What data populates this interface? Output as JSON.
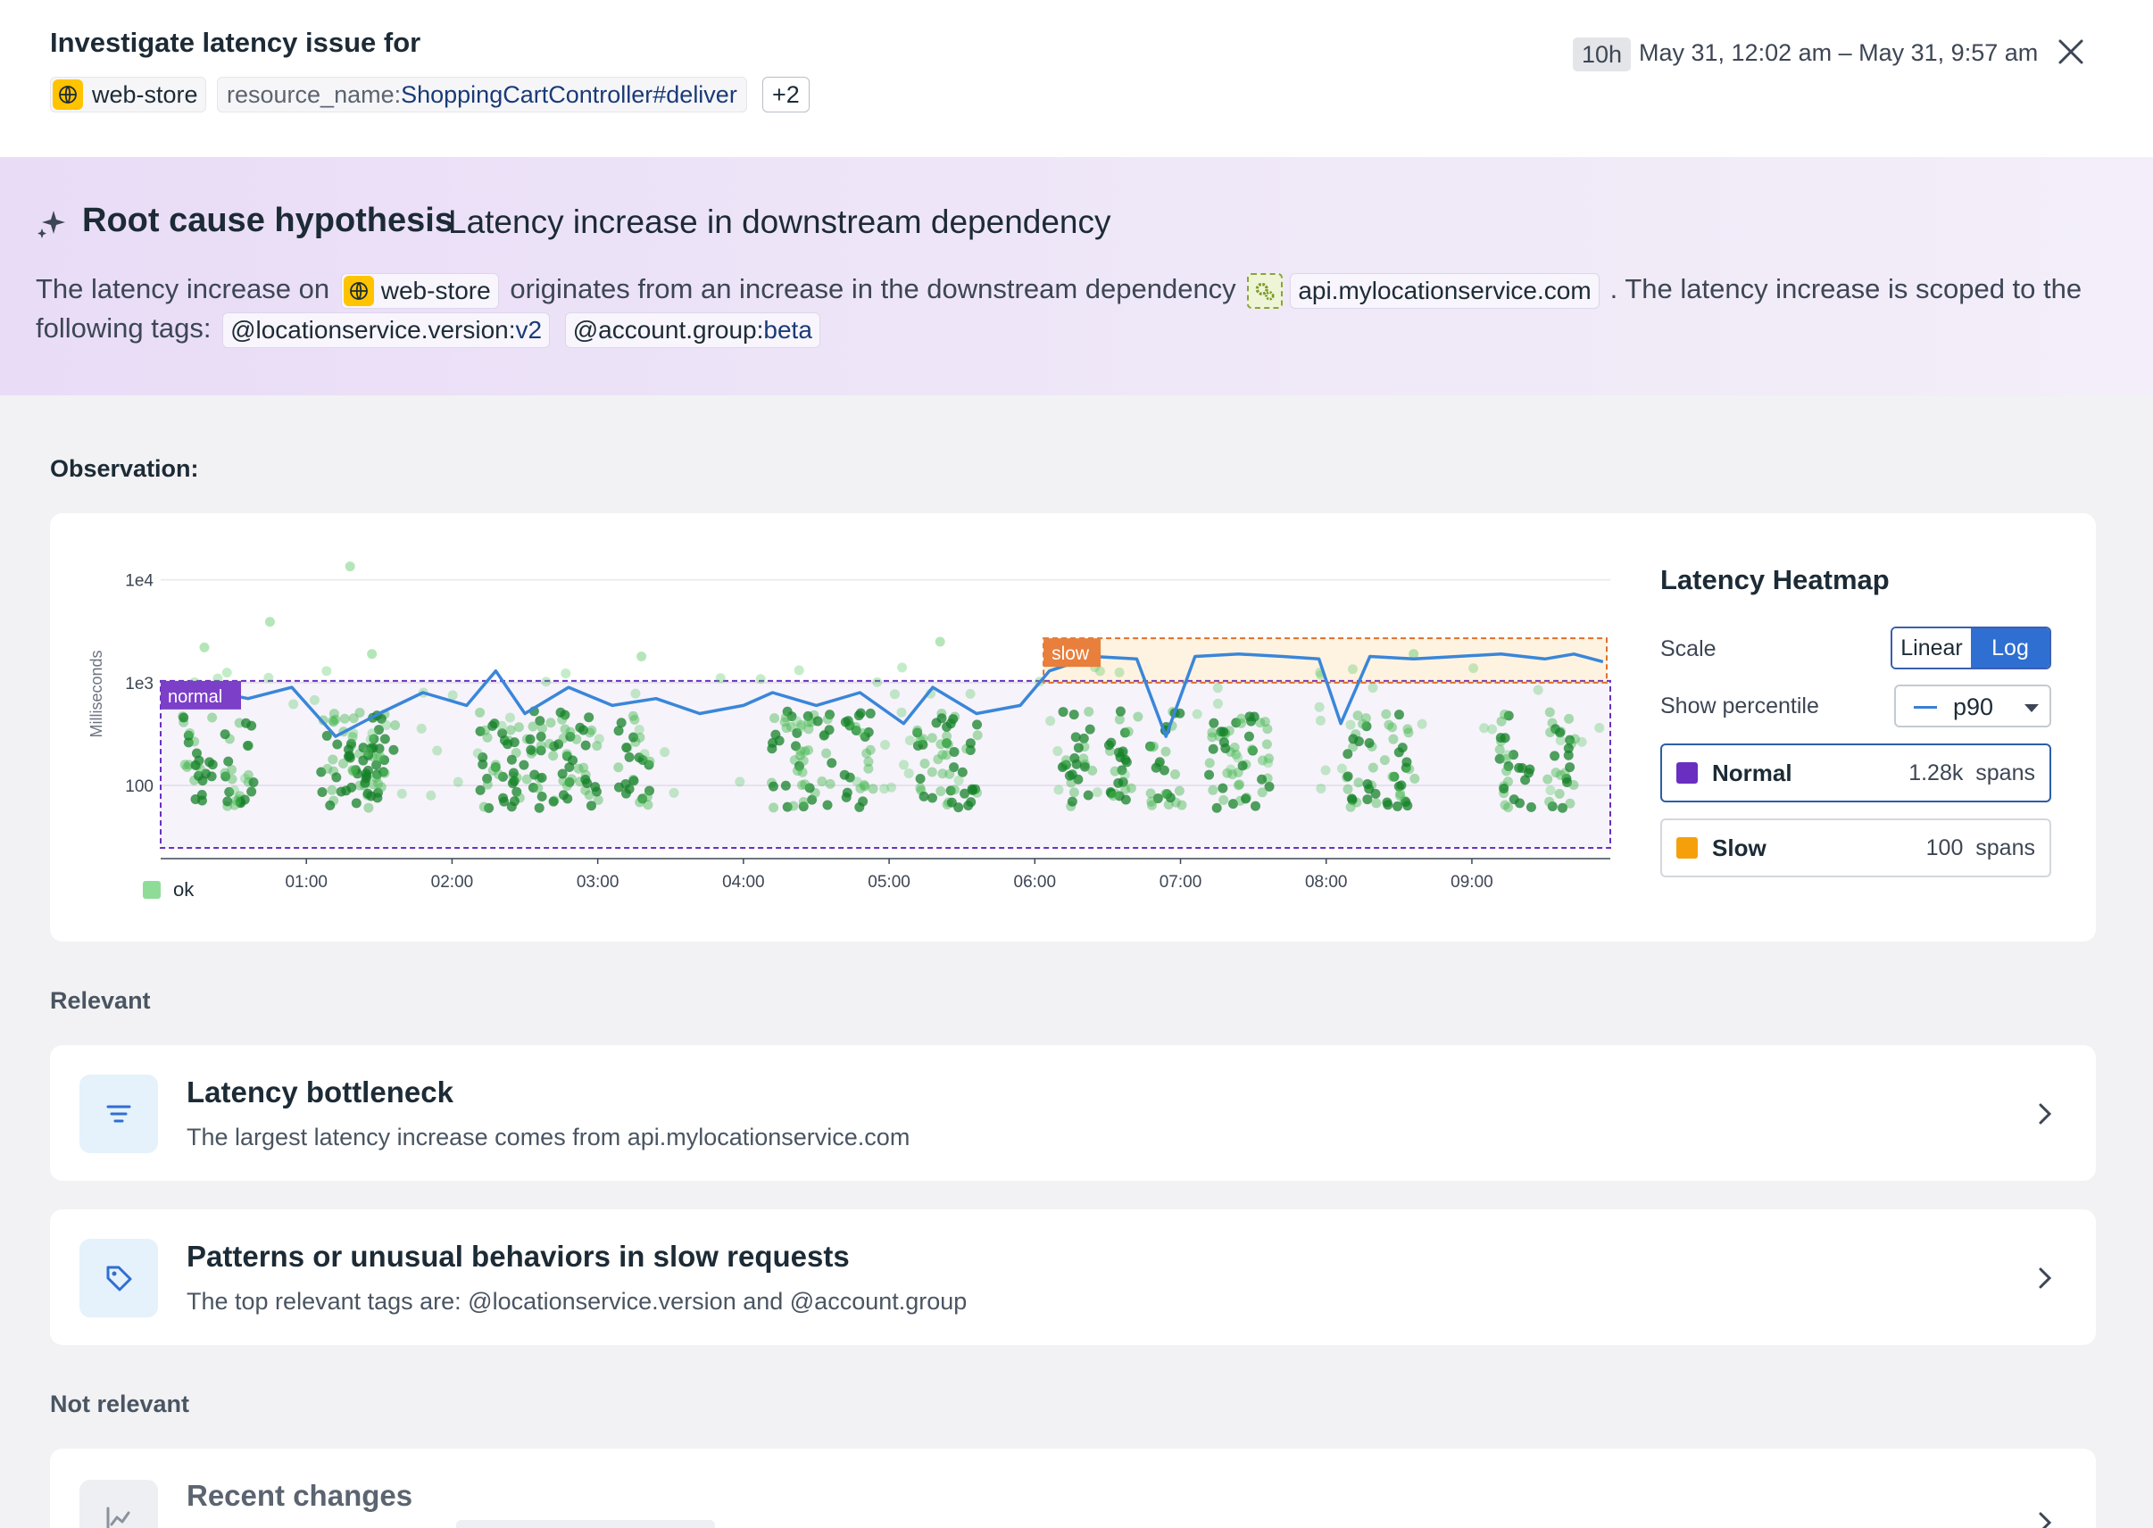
{
  "header": {
    "title": "Investigate latency issue for",
    "service_chip": "web-store",
    "resource_key": "resource_name:",
    "resource_value": "ShoppingCartController#deliver",
    "more_chip": "+2",
    "range_badge": "10h",
    "range_text": "May 31, 12:02 am – May 31, 9:57 am"
  },
  "hypothesis": {
    "title": "Root cause hypothesis",
    "subtitle": "Latency increase in downstream dependency",
    "text_1": "The latency increase on",
    "service": "web-store",
    "text_2": "originates from an increase in the downstream dependency",
    "dependency": "api.mylocationservice.com",
    "text_3": ". The latency increase is scoped to the following tags:",
    "tag1_key": "@locationservice.version:",
    "tag1_val": "v2",
    "tag2_key": "@account.group:",
    "tag2_val": "beta"
  },
  "observation": {
    "label": "Observation:",
    "heatmap_title": "Latency Heatmap",
    "scale_label": "Scale",
    "scale_options": [
      "Linear",
      "Log"
    ],
    "scale_selected": "Log",
    "percentile_label": "Show percentile",
    "percentile_value": "p90",
    "normal_name": "Normal",
    "normal_count": "1.28k",
    "normal_unit": "spans",
    "slow_name": "Slow",
    "slow_count": "100",
    "slow_unit": "spans",
    "normal_color": "#6a2fc0",
    "slow_color": "#f5a00a"
  },
  "chart_data": {
    "type": "scatter",
    "ylabel": "Milliseconds",
    "yscale": "log",
    "ytick_labels": [
      "100",
      "1e3",
      "1e4"
    ],
    "yticks": [
      100,
      1000,
      10000
    ],
    "xtick_labels": [
      "01:00",
      "02:00",
      "03:00",
      "04:00",
      "05:00",
      "06:00",
      "07:00",
      "08:00",
      "09:00"
    ],
    "xrange_hours": [
      0.03,
      9.95
    ],
    "legend": [
      "ok"
    ],
    "region_labels": {
      "normal": "normal",
      "slow": "slow"
    },
    "p90_series": [
      [
        0.05,
        600
      ],
      [
        0.3,
        850
      ],
      [
        0.6,
        700
      ],
      [
        0.9,
        900
      ],
      [
        1.2,
        300
      ],
      [
        1.5,
        500
      ],
      [
        1.8,
        800
      ],
      [
        2.1,
        600
      ],
      [
        2.3,
        1300
      ],
      [
        2.5,
        500
      ],
      [
        2.8,
        900
      ],
      [
        3.1,
        600
      ],
      [
        3.4,
        700
      ],
      [
        3.7,
        500
      ],
      [
        4.0,
        600
      ],
      [
        4.2,
        800
      ],
      [
        4.5,
        600
      ],
      [
        4.8,
        800
      ],
      [
        5.1,
        400
      ],
      [
        5.3,
        900
      ],
      [
        5.6,
        500
      ],
      [
        5.9,
        600
      ],
      [
        6.1,
        1300
      ],
      [
        6.4,
        1800
      ],
      [
        6.7,
        1700
      ],
      [
        6.9,
        300
      ],
      [
        7.1,
        1800
      ],
      [
        7.4,
        1900
      ],
      [
        7.7,
        1800
      ],
      [
        7.95,
        1700
      ],
      [
        8.1,
        400
      ],
      [
        8.3,
        1800
      ],
      [
        8.6,
        1700
      ],
      [
        8.9,
        1800
      ],
      [
        9.2,
        1900
      ],
      [
        9.5,
        1700
      ],
      [
        9.7,
        1900
      ],
      [
        9.9,
        1600
      ]
    ]
  },
  "sections": {
    "relevant": "Relevant",
    "not_relevant": "Not relevant"
  },
  "rows": [
    {
      "title": "Latency bottleneck",
      "desc": "The largest latency increase comes from api.mylocationservice.com",
      "icon": "filter-icon"
    },
    {
      "title": "Patterns or unusual behaviors in slow requests",
      "desc": "The top relevant tags are: @locationservice.version and @account.group",
      "icon": "tag-icon"
    },
    {
      "title": "Recent changes",
      "desc": "",
      "icon": "chart-icon"
    }
  ]
}
